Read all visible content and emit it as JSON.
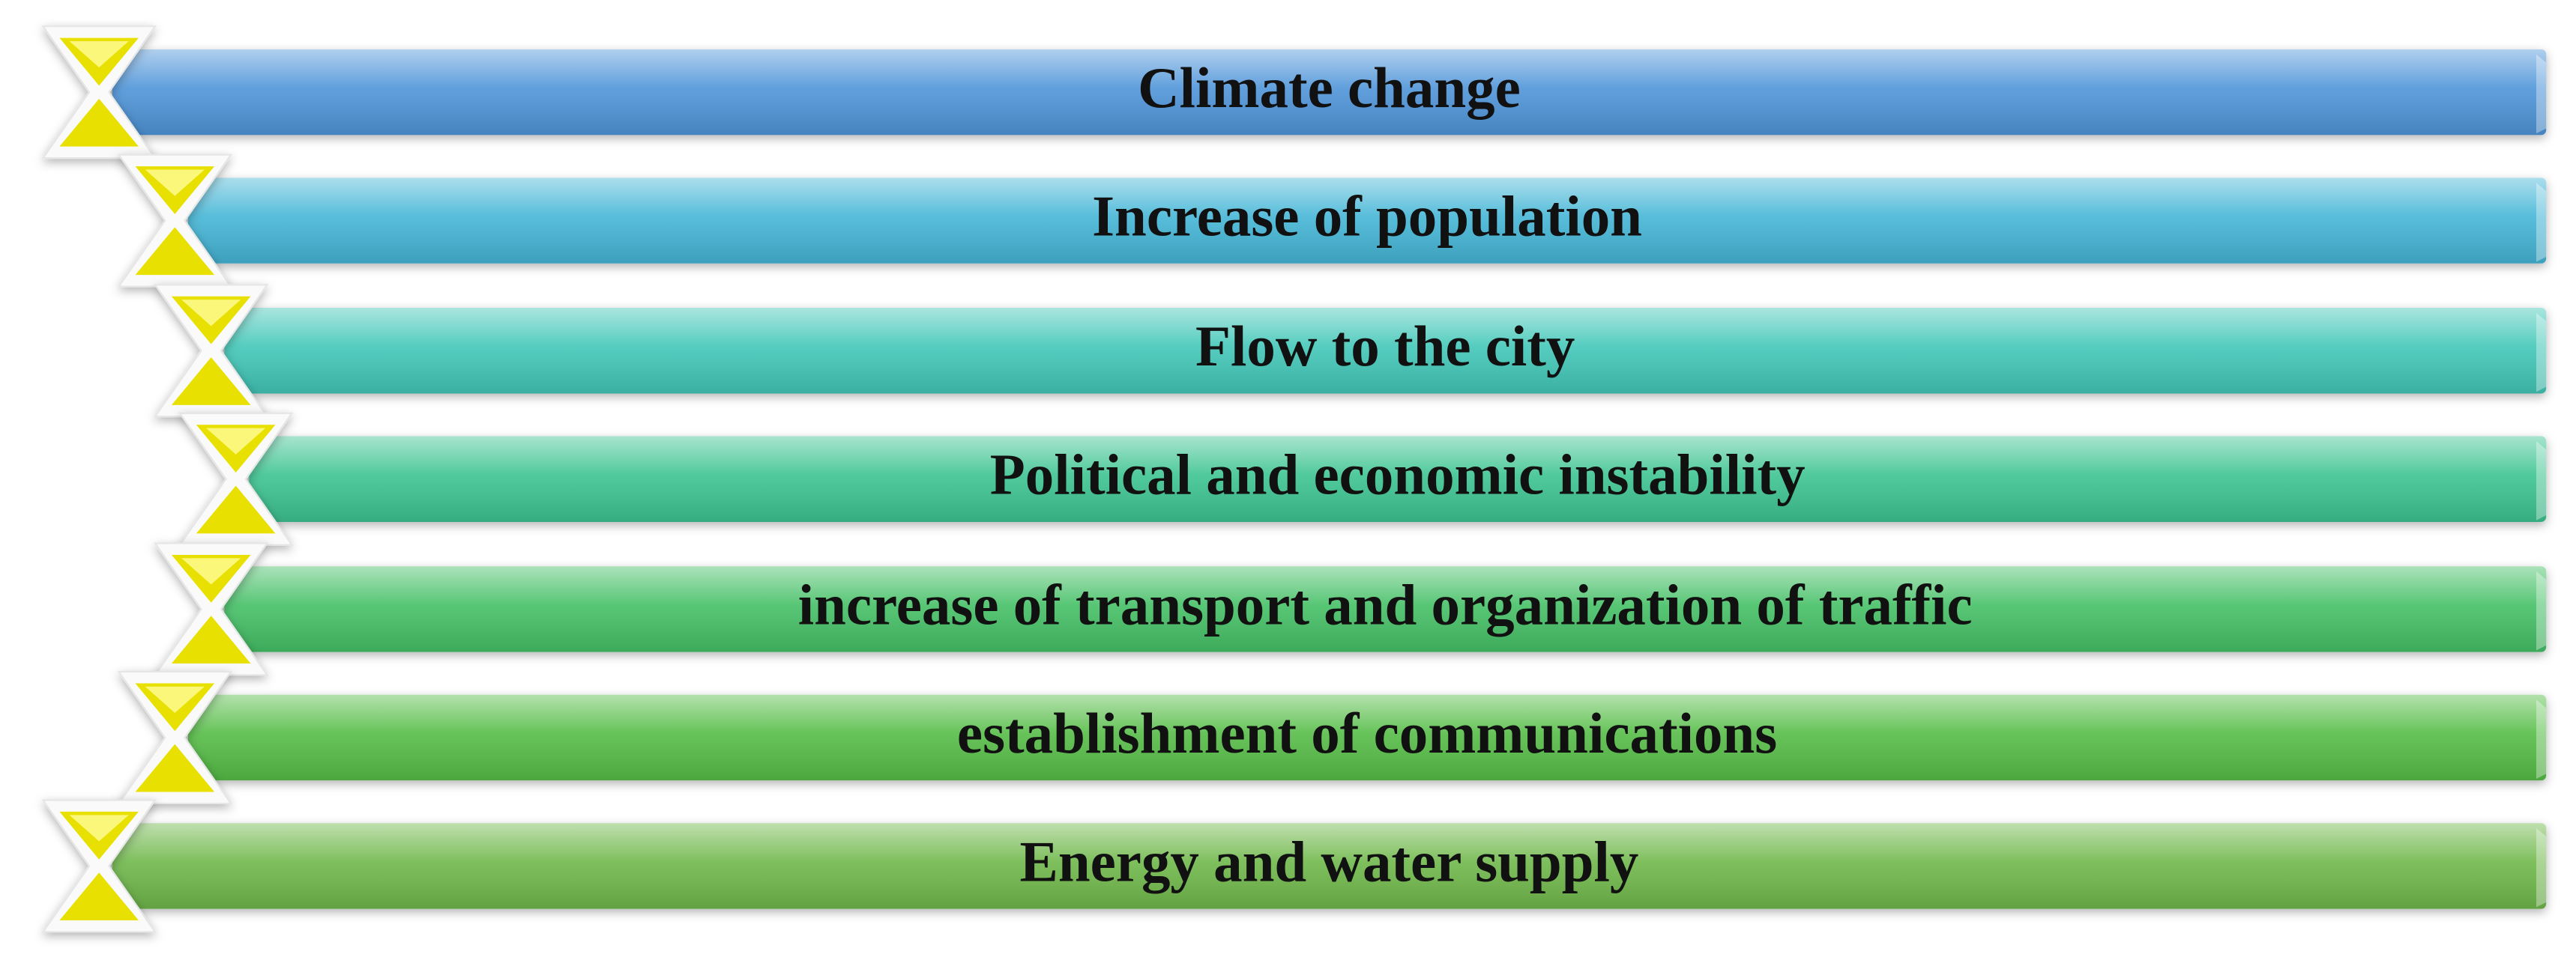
{
  "items": [
    {
      "label": "Climate change"
    },
    {
      "label": "Increase of population"
    },
    {
      "label": "Flow to the city"
    },
    {
      "label": "Political and economic instability"
    },
    {
      "label": "increase of transport and organization of traffic"
    },
    {
      "label": "establishment of communications"
    },
    {
      "label": "Energy and water supply"
    }
  ]
}
